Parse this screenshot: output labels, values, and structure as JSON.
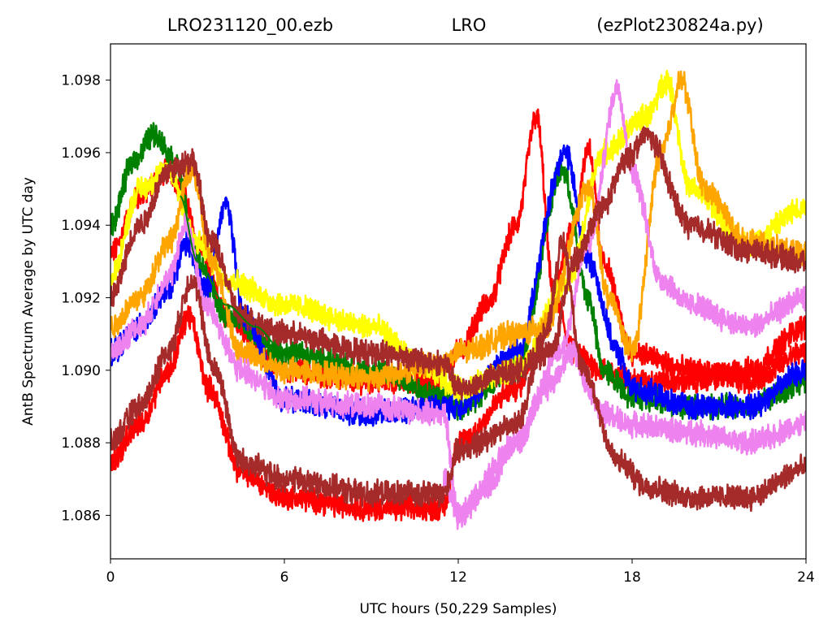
{
  "chart_data": {
    "type": "line",
    "title": {
      "left": "LRO231120_00.ezb",
      "center": "LRO",
      "right": "(ezPlot230824a.py)"
    },
    "xlabel": "UTC hours  (50,229 Samples)",
    "ylabel": "AntB Spectrum Average by UTC day",
    "xlim": [
      0,
      24
    ],
    "ylim": [
      1.0848,
      1.099
    ],
    "xticks": [
      0,
      6,
      12,
      18,
      24
    ],
    "yticks": [
      1.086,
      1.088,
      1.09,
      1.092,
      1.094,
      1.096,
      1.098
    ],
    "ytick_labels": [
      "1.086",
      "1.088",
      "1.090",
      "1.092",
      "1.094",
      "1.096",
      "1.098"
    ],
    "grid": false,
    "legend": "none",
    "series": [
      {
        "color": "#ff0000",
        "x": [
          0,
          1,
          2,
          2.5,
          3,
          4,
          6,
          9,
          11.3,
          12,
          13,
          14,
          14.7,
          15.3,
          16,
          17,
          18,
          20,
          22,
          24
        ],
        "y": [
          1.0932,
          1.0948,
          1.0955,
          1.095,
          1.0935,
          1.0915,
          1.09,
          1.0897,
          1.0897,
          1.0905,
          1.0918,
          1.094,
          1.097,
          1.092,
          1.0905,
          1.09,
          1.0897,
          1.0897,
          1.09,
          1.0912
        ]
      },
      {
        "color": "#ff0000",
        "x": [
          0,
          1,
          2,
          2.7,
          3.4,
          4.5,
          6,
          9,
          11.5,
          12,
          14,
          15,
          16,
          16.5,
          17,
          18,
          20,
          22,
          24
        ],
        "y": [
          1.0875,
          1.0885,
          1.09,
          1.0915,
          1.0895,
          1.0872,
          1.0865,
          1.0862,
          1.0862,
          1.088,
          1.0895,
          1.0912,
          1.094,
          1.0962,
          1.093,
          1.0905,
          1.09,
          1.0897,
          1.0905
        ]
      },
      {
        "color": "#008000",
        "x": [
          0,
          0.8,
          1.5,
          2.2,
          3,
          4,
          6,
          9,
          11.5,
          12,
          14,
          15.6,
          16.5,
          17,
          18,
          20,
          22,
          24
        ],
        "y": [
          1.094,
          1.0958,
          1.0965,
          1.0958,
          1.093,
          1.0915,
          1.0905,
          1.09,
          1.0893,
          1.089,
          1.09,
          1.0955,
          1.092,
          1.09,
          1.0893,
          1.089,
          1.089,
          1.0897
        ]
      },
      {
        "color": "#0000ff",
        "x": [
          0,
          1,
          2,
          2.6,
          3.3,
          4,
          4.6,
          6,
          9,
          11.5,
          12,
          14,
          15.7,
          16.5,
          17.5,
          18,
          20,
          22,
          24
        ],
        "y": [
          1.0905,
          1.0912,
          1.0922,
          1.0935,
          1.0922,
          1.0946,
          1.0915,
          1.0892,
          1.0888,
          1.089,
          1.089,
          1.0905,
          1.096,
          1.093,
          1.0905,
          1.0895,
          1.089,
          1.089,
          1.09
        ]
      },
      {
        "color": "#ffff00",
        "x": [
          0,
          1,
          2,
          3,
          4,
          6,
          9,
          11,
          12,
          14,
          15.8,
          17,
          18.5,
          19.2,
          20,
          22,
          24
        ],
        "y": [
          1.0925,
          1.095,
          1.0955,
          1.0935,
          1.0925,
          1.0918,
          1.0912,
          1.09,
          1.0895,
          1.09,
          1.0925,
          1.096,
          1.097,
          1.098,
          1.095,
          1.0935,
          1.0945
        ]
      },
      {
        "color": "#ffa500",
        "x": [
          0,
          1,
          2,
          2.8,
          3.5,
          4.5,
          6,
          9,
          11.5,
          12,
          14,
          15,
          16.5,
          17.2,
          18,
          19,
          19.7,
          20.5,
          22,
          24
        ],
        "y": [
          1.0912,
          1.092,
          1.0935,
          1.0955,
          1.093,
          1.0905,
          1.09,
          1.0898,
          1.0902,
          1.0905,
          1.091,
          1.0912,
          1.095,
          1.092,
          1.0905,
          1.096,
          1.098,
          1.095,
          1.0935,
          1.0932
        ]
      },
      {
        "color": "#ee82ee",
        "x": [
          0,
          1,
          2,
          2.6,
          3.3,
          4.5,
          6,
          9,
          11.5,
          12,
          14,
          15.5,
          16.5,
          17.5,
          18,
          19,
          20,
          22,
          24
        ],
        "y": [
          1.0905,
          1.0912,
          1.0925,
          1.094,
          1.0918,
          1.09,
          1.0892,
          1.089,
          1.0888,
          1.086,
          1.088,
          1.0905,
          1.0935,
          1.0978,
          1.0955,
          1.0925,
          1.0918,
          1.0912,
          1.092
        ]
      },
      {
        "color": "#ee82ee",
        "x": [
          11.5,
          12,
          13,
          14,
          15,
          16,
          16.5,
          17,
          18,
          20,
          22,
          24
        ],
        "y": [
          1.087,
          1.086,
          1.0868,
          1.088,
          1.0895,
          1.0905,
          1.0895,
          1.0888,
          1.0885,
          1.0883,
          1.088,
          1.0885
        ]
      },
      {
        "color": "#a52a2a",
        "x": [
          0,
          1,
          2,
          2.8,
          3.5,
          4.5,
          6,
          9,
          11.5,
          12,
          14,
          15.2,
          16,
          17,
          17.8,
          18.5,
          20,
          22,
          24
        ],
        "y": [
          1.092,
          1.094,
          1.0955,
          1.0958,
          1.0935,
          1.0915,
          1.091,
          1.0905,
          1.0902,
          1.0895,
          1.09,
          1.0905,
          1.093,
          1.0945,
          1.0958,
          1.0965,
          1.094,
          1.0933,
          1.093
        ]
      },
      {
        "color": "#a52a2a",
        "x": [
          0,
          1,
          2,
          2.8,
          3.6,
          4.5,
          6,
          9,
          11.5,
          12,
          14,
          15,
          15.6,
          16.3,
          17.5,
          18.5,
          20,
          22,
          24
        ],
        "y": [
          1.088,
          1.089,
          1.0905,
          1.0925,
          1.09,
          1.0875,
          1.087,
          1.0866,
          1.0866,
          1.0878,
          1.0885,
          1.091,
          1.0935,
          1.09,
          1.0875,
          1.0868,
          1.0865,
          1.0865,
          1.0873
        ]
      },
      {
        "color": "#008000",
        "x": [
          2.4,
          3,
          4,
          5,
          6
        ],
        "y": [
          1.0948,
          1.093,
          1.0918,
          1.0912,
          1.0905
        ]
      }
    ]
  }
}
